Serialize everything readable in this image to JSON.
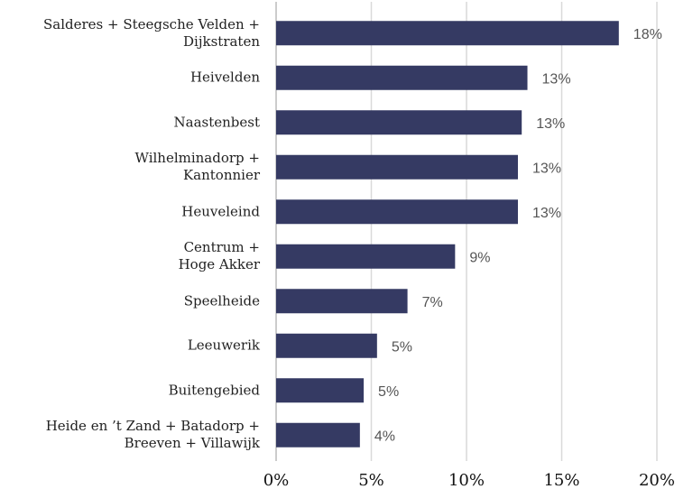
{
  "chart_data": {
    "type": "bar",
    "orientation": "horizontal",
    "categories": [
      "Salderes + Steegsche Velden +\nDijkstraten",
      "Heivelden",
      "Naastenbest",
      "Wilhelminadorp +\nKantonnier",
      "Heuveleind",
      "Centrum +\nHoge Akker",
      "Speelheide",
      "Leeuwerik",
      "Buitengebied",
      "Heide en ’t Zand + Batadorp +\nBreeven + Villawijk"
    ],
    "values": [
      18.0,
      13.2,
      12.9,
      12.7,
      12.7,
      9.4,
      6.9,
      5.3,
      4.6,
      4.4
    ],
    "value_labels": [
      "18%",
      "13%",
      "13%",
      "13%",
      "13%",
      "9%",
      "7%",
      "5%",
      "5%",
      "4%"
    ],
    "color": "#353a63",
    "xlim": [
      0,
      20
    ],
    "xticks": [
      {
        "value": 0,
        "label": "0%"
      },
      {
        "value": 5,
        "label": "5%"
      },
      {
        "value": 10,
        "label": "10%"
      },
      {
        "value": 15,
        "label": "15%"
      },
      {
        "value": 20,
        "label": "20%"
      }
    ],
    "grid": true
  }
}
